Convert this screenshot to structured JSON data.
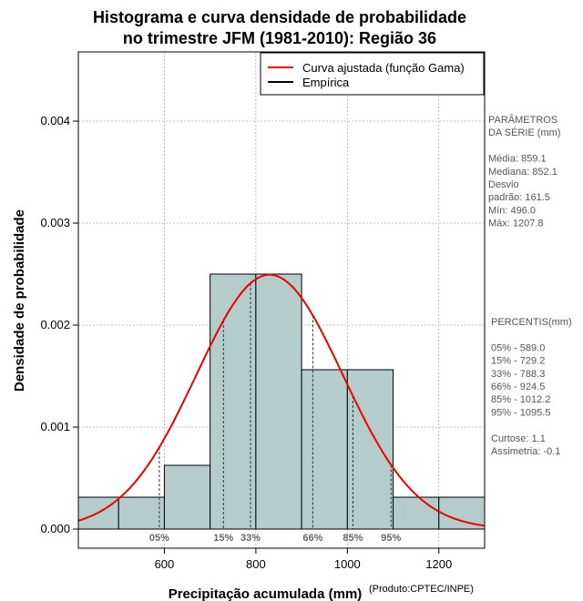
{
  "chart_data": {
    "type": "bar",
    "title_lines": [
      "Histograma e curva densidade de probabilidade",
      "no trimestre JFM (1981-2010): Região 36"
    ],
    "xlabel": "Precipitação acumulada (mm)",
    "ylabel": "Densidade de probabilidade",
    "credit": "(Produto:CPTEC/INPE)",
    "xlim": [
      412,
      1300
    ],
    "ylim": [
      0,
      0.0047
    ],
    "x_ticks": [
      600,
      800,
      1000,
      1200
    ],
    "y_ticks": [
      0.0,
      0.001,
      0.002,
      0.003,
      0.004
    ],
    "y_tick_labels": [
      "0.000",
      "0.001",
      "0.002",
      "0.003",
      "0.004"
    ],
    "bins": [
      {
        "start": 400,
        "end": 500,
        "density": 0.0003125
      },
      {
        "start": 500,
        "end": 600,
        "density": 0.0003125
      },
      {
        "start": 600,
        "end": 700,
        "density": 0.000625
      },
      {
        "start": 700,
        "end": 800,
        "density": 0.0025
      },
      {
        "start": 800,
        "end": 900,
        "density": 0.0025
      },
      {
        "start": 900,
        "end": 1000,
        "density": 0.0015625
      },
      {
        "start": 1000,
        "end": 1100,
        "density": 0.0015625
      },
      {
        "start": 1100,
        "end": 1200,
        "density": 0.0003125
      },
      {
        "start": 1200,
        "end": 1300,
        "density": 0.0003125
      }
    ],
    "fit_curve": {
      "distribution": "gamma",
      "mean": 830,
      "sd": 160
    },
    "legend": {
      "position": "top-right",
      "entries": [
        {
          "label": "Curva ajustada (função Gama)",
          "color": "#ee0000"
        },
        {
          "label": "Empírica",
          "color": "#000000"
        }
      ]
    },
    "percentile_markers": [
      {
        "label": "05%",
        "value": 589.0
      },
      {
        "label": "15%",
        "value": 729.2
      },
      {
        "label": "33%",
        "value": 788.3
      },
      {
        "label": "66%",
        "value": 924.5
      },
      {
        "label": "85%",
        "value": 1012.2
      },
      {
        "label": "95%",
        "value": 1095.5
      }
    ],
    "stats_panel": {
      "params_lines": [
        "PARÂMETROS",
        " DA SÉRIE (mm)",
        "",
        "Média:  859.1",
        "Mediana:  852.1",
        "Desvio",
        "padrão:  161.5",
        "Mín:  496.0",
        "Máx:  1207.8"
      ],
      "percentis_lines": [
        " PERCENTIS(mm)",
        "",
        "05% -   589.0",
        "15% -   729.2",
        "33% -   788.3",
        "66% -   924.5",
        "85% -   1012.2",
        "95% -   1095.5",
        "",
        "Curtose:  1.1",
        "Assimetria:  -0.1"
      ]
    },
    "colors": {
      "bar_fill": "#b4cccb",
      "curve": "#ee0000",
      "grid": "#aaaaaa",
      "text_gray": "#555555"
    }
  }
}
